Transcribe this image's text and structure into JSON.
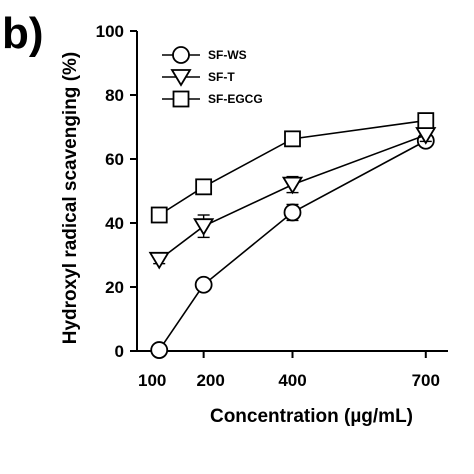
{
  "panel_label": "b)",
  "chart_data": {
    "type": "line",
    "xlabel": "Concentration (µg/mL)",
    "ylabel": "Hydroxyl radical scavenging (%)",
    "x": [
      100,
      200,
      400,
      700
    ],
    "xticks": [
      "100",
      "200",
      "400",
      "700"
    ],
    "ylim": [
      0,
      100
    ],
    "yticks": [
      "0",
      "20",
      "40",
      "60",
      "80",
      "100"
    ],
    "grid": false,
    "legend": "top-left",
    "series": [
      {
        "name": "SF-WS",
        "marker": "circle",
        "values": [
          0.3,
          20.7,
          43.3,
          65.7
        ],
        "errors": [
          0.5,
          1.5,
          2.5,
          1.8
        ]
      },
      {
        "name": "SF-T",
        "marker": "triangle-down",
        "values": [
          28.5,
          39.0,
          52.0,
          67.5
        ],
        "errors": [
          1.2,
          3.5,
          2.5,
          2.0
        ]
      },
      {
        "name": "SF-EGCG",
        "marker": "square",
        "values": [
          42.5,
          51.3,
          66.3,
          72.0
        ],
        "errors": [
          0.8,
          1.2,
          1.2,
          1.5
        ]
      }
    ]
  }
}
